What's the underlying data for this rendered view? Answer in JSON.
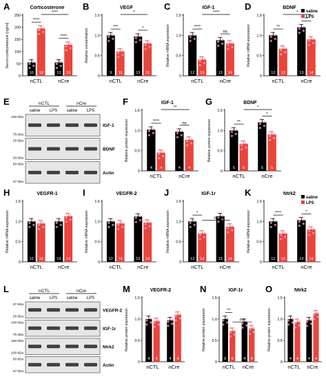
{
  "figure": {
    "colors": {
      "saline": "#000000",
      "lps": "#e8453c",
      "dots": "#f4a6c8",
      "error": "#444444"
    },
    "blots": [
      {
        "letter": "E",
        "groups": [
          "nCTL",
          "nCre"
        ],
        "lanes": [
          "saline",
          "LPS",
          "saline",
          "LPS"
        ],
        "markers": [
          "100 kDa",
          "75 kDa",
          "25 kDa",
          "20 kDa",
          "50 kDa",
          "37 kDa"
        ],
        "bands": [
          "IGF-1",
          "BDNF",
          "Actin"
        ]
      },
      {
        "letter": "L",
        "groups": [
          "nCTL",
          "nCre"
        ],
        "lanes": [
          "saline",
          "LPS",
          "saline",
          "LPS"
        ],
        "markers": [
          "37 kDa",
          "25 kDa",
          "100 kDa",
          "75 kDa",
          "150 kDa",
          "100 kDa",
          "50 kDa",
          "37 kDa"
        ],
        "bands": [
          "VEGFR-2",
          "IGF-1r",
          "Ntrk2",
          "Actin"
        ]
      }
    ]
  },
  "chart_data": [
    {
      "letter": "A",
      "type": "bar",
      "title": "Corticosterone",
      "ylabel": "Serum corticosterone (ng/ml)",
      "categories": [
        "nCTL",
        "nCre"
      ],
      "ylim": [
        0,
        250
      ],
      "yticks": [
        0,
        50,
        100,
        150,
        200,
        250
      ],
      "series": [
        {
          "name": "saline",
          "values": [
            55,
            55
          ],
          "n": [
            "10",
            "13"
          ]
        },
        {
          "name": "LPS",
          "values": [
            195,
            128
          ],
          "n": [
            "10",
            "13"
          ]
        }
      ],
      "sig": [
        {
          "label": "****",
          "from": 0,
          "to": 1,
          "level": 1
        },
        {
          "label": "****",
          "from": 2,
          "to": 3,
          "level": 1
        },
        {
          "label": "****",
          "from": 1,
          "to": 3,
          "level": 2
        }
      ]
    },
    {
      "letter": "B",
      "type": "bar",
      "title": "VEGF",
      "ylabel": "Relative concentration",
      "categories": [
        "nCTL",
        "nCre"
      ],
      "ylim": [
        0,
        1.5
      ],
      "yticks": [
        0,
        0.5,
        1.0,
        1.5
      ],
      "series": [
        {
          "name": "saline",
          "values": [
            1.0,
            0.97
          ],
          "n": [
            "9",
            "13"
          ]
        },
        {
          "name": "LPS",
          "values": [
            0.6,
            0.8
          ],
          "n": [
            "11",
            "11"
          ]
        }
      ],
      "sig": [
        {
          "label": "***",
          "from": 0,
          "to": 1,
          "level": 1
        },
        {
          "label": "*",
          "from": 2,
          "to": 3,
          "level": 1
        },
        {
          "label": "*",
          "from": 1,
          "to": 3,
          "level": 2
        }
      ]
    },
    {
      "letter": "C",
      "type": "bar",
      "title": "IGF-1",
      "ylabel": "Relative mRNA expression",
      "categories": [
        "nCTL",
        "nCre"
      ],
      "ylim": [
        0,
        1.5
      ],
      "yticks": [
        0,
        0.5,
        1.0,
        1.5
      ],
      "series": [
        {
          "name": "saline",
          "values": [
            1.0,
            0.88
          ],
          "n": [
            "12",
            "13"
          ]
        },
        {
          "name": "LPS",
          "values": [
            0.4,
            0.8
          ],
          "n": [
            "13",
            "14"
          ]
        }
      ],
      "sig": [
        {
          "label": "****",
          "from": 0,
          "to": 1,
          "level": 1
        },
        {
          "label": "ns",
          "from": 2,
          "to": 3,
          "level": 1
        },
        {
          "label": "****",
          "from": 1,
          "to": 3,
          "level": 2
        }
      ]
    },
    {
      "letter": "D",
      "type": "bar",
      "title": "BDNF",
      "ylabel": "Relative mRNA expression",
      "categories": [
        "nCTL",
        "nCre"
      ],
      "ylim": [
        0,
        1.5
      ],
      "yticks": [
        0,
        0.5,
        1.0,
        1.5
      ],
      "legend": [
        "saline",
        "LPS"
      ],
      "series": [
        {
          "name": "saline",
          "values": [
            1.0,
            1.2
          ],
          "n": [
            "12",
            "13"
          ]
        },
        {
          "name": "LPS",
          "values": [
            0.67,
            0.9
          ],
          "n": [
            "13",
            "14"
          ]
        }
      ],
      "sig": [
        {
          "label": "**",
          "from": 0,
          "to": 1,
          "level": 1
        },
        {
          "label": "**",
          "from": 2,
          "to": 3,
          "level": 1
        },
        {
          "label": "*",
          "from": 1,
          "to": 3,
          "level": 2
        }
      ]
    },
    {
      "letter": "F",
      "type": "bar",
      "title": "IGF-1",
      "ylabel": "Relative protein expression",
      "categories": [
        "nCTL",
        "nCre"
      ],
      "ylim": [
        0,
        1.5
      ],
      "yticks": [
        0,
        0.5,
        1.0,
        1.5
      ],
      "series": [
        {
          "name": "saline",
          "values": [
            1.02,
            0.97
          ],
          "n": [
            "4",
            "4"
          ]
        },
        {
          "name": "LPS",
          "values": [
            0.45,
            0.77
          ],
          "n": [
            "4",
            "4"
          ]
        }
      ],
      "sig": [
        {
          "label": "****",
          "from": 0,
          "to": 1,
          "level": 1
        },
        {
          "label": "ns",
          "from": 2,
          "to": 3,
          "level": 1
        },
        {
          "label": "**",
          "from": 1,
          "to": 3,
          "level": 2
        }
      ]
    },
    {
      "letter": "G",
      "type": "bar",
      "title": "BDNF",
      "ylabel": "Relative protein expression",
      "categories": [
        "nCTL",
        "nCre"
      ],
      "ylim": [
        0,
        1.5
      ],
      "yticks": [
        0,
        0.5,
        1.0,
        1.5
      ],
      "series": [
        {
          "name": "saline",
          "values": [
            1.0,
            1.2
          ],
          "n": [
            "5",
            "5"
          ]
        },
        {
          "name": "LPS",
          "values": [
            0.67,
            0.9
          ],
          "n": [
            "5",
            "5"
          ]
        }
      ],
      "sig": [
        {
          "label": "**",
          "from": 0,
          "to": 1,
          "level": 1
        },
        {
          "label": "*",
          "from": 2,
          "to": 3,
          "level": 1
        },
        {
          "label": "*",
          "from": 1,
          "to": 3,
          "level": 2
        }
      ]
    },
    {
      "letter": "H",
      "type": "bar",
      "title": "VEGFR-1",
      "ylabel": "Relative mRNA expression",
      "categories": [
        "nCTL",
        "nCre"
      ],
      "ylim": [
        0,
        1.5
      ],
      "yticks": [
        0,
        0.5,
        1.0,
        1.5
      ],
      "series": [
        {
          "name": "saline",
          "values": [
            1.0,
            1.0
          ],
          "n": [
            "12",
            "13"
          ]
        },
        {
          "name": "LPS",
          "values": [
            0.95,
            1.13
          ],
          "n": [
            "13",
            "14"
          ]
        }
      ],
      "sig": []
    },
    {
      "letter": "I",
      "type": "bar",
      "title": "VEGFR-2",
      "ylabel": "Relative mRNA expression",
      "categories": [
        "nCTL",
        "nCre"
      ],
      "ylim": [
        0,
        1.5
      ],
      "yticks": [
        0,
        0.5,
        1.0,
        1.5
      ],
      "series": [
        {
          "name": "saline",
          "values": [
            1.0,
            1.12
          ],
          "n": [
            "12",
            "13"
          ]
        },
        {
          "name": "LPS",
          "values": [
            0.95,
            0.97
          ],
          "n": [
            "13",
            "14"
          ]
        }
      ],
      "sig": []
    },
    {
      "letter": "J",
      "type": "bar",
      "title": "IGF-1r",
      "ylabel": "Relative mRNA expression",
      "categories": [
        "nCTL",
        "nCre"
      ],
      "ylim": [
        0,
        1.5
      ],
      "yticks": [
        0,
        0.5,
        1.0,
        1.5
      ],
      "series": [
        {
          "name": "saline",
          "values": [
            1.0,
            1.13
          ],
          "n": [
            "12",
            "13"
          ]
        },
        {
          "name": "LPS",
          "values": [
            0.7,
            0.87
          ],
          "n": [
            "13",
            "14"
          ]
        }
      ],
      "sig": [
        {
          "label": "*",
          "from": 0,
          "to": 1,
          "level": 1
        },
        {
          "label": "ns",
          "from": 1,
          "to": 3,
          "level": 1
        }
      ]
    },
    {
      "letter": "K",
      "type": "bar",
      "title": "Ntrk2",
      "ylabel": "Relative mRNA expression",
      "categories": [
        "nCTL",
        "nCre"
      ],
      "ylim": [
        0,
        1.5
      ],
      "yticks": [
        0,
        0.5,
        1.0,
        1.5
      ],
      "legend": [
        "saline",
        "LPS"
      ],
      "series": [
        {
          "name": "saline",
          "values": [
            1.0,
            1.03
          ],
          "n": [
            "12",
            "13"
          ]
        },
        {
          "name": "LPS",
          "values": [
            0.7,
            0.8
          ],
          "n": [
            "13",
            "14"
          ]
        }
      ],
      "sig": [
        {
          "label": "****",
          "from": 0,
          "to": 1,
          "level": 1
        },
        {
          "label": "*",
          "from": 2,
          "to": 3,
          "level": 1
        }
      ]
    },
    {
      "letter": "M",
      "type": "bar",
      "title": "VEGFR-2",
      "ylabel": "Relative protein expression",
      "categories": [
        "nCTL",
        "nCre"
      ],
      "ylim": [
        0,
        1.5
      ],
      "yticks": [
        0,
        0.5,
        1.0,
        1.5
      ],
      "series": [
        {
          "name": "saline",
          "values": [
            1.0,
            0.97
          ],
          "n": [
            "4",
            "4"
          ]
        },
        {
          "name": "LPS",
          "values": [
            0.95,
            1.1
          ],
          "n": [
            "4",
            "4"
          ]
        }
      ],
      "sig": []
    },
    {
      "letter": "N",
      "type": "bar",
      "title": "IGF-1r",
      "ylabel": "Relative protein expression",
      "categories": [
        "nCTL",
        "nCre"
      ],
      "ylim": [
        0,
        1.5
      ],
      "yticks": [
        0,
        0.5,
        1.0,
        1.5
      ],
      "series": [
        {
          "name": "saline",
          "values": [
            1.0,
            0.93
          ],
          "n": [
            "6",
            "4"
          ]
        },
        {
          "name": "LPS",
          "values": [
            0.72,
            0.78
          ],
          "n": [
            "6",
            "4"
          ]
        }
      ],
      "sig": [
        {
          "label": "**",
          "from": 0,
          "to": 1,
          "level": 1
        },
        {
          "label": "ns",
          "from": 1,
          "to": 3,
          "level": 1
        }
      ]
    },
    {
      "letter": "O",
      "type": "bar",
      "title": "Ntrk2",
      "ylabel": "Relative protein expression",
      "categories": [
        "nCTL",
        "nCre"
      ],
      "ylim": [
        0,
        1.5
      ],
      "yticks": [
        0,
        0.5,
        1.0,
        1.5
      ],
      "series": [
        {
          "name": "saline",
          "values": [
            1.0,
            0.97
          ],
          "n": [
            "4",
            "4"
          ]
        },
        {
          "name": "LPS",
          "values": [
            0.93,
            1.13
          ],
          "n": [
            "4",
            "4"
          ]
        }
      ],
      "sig": []
    }
  ]
}
